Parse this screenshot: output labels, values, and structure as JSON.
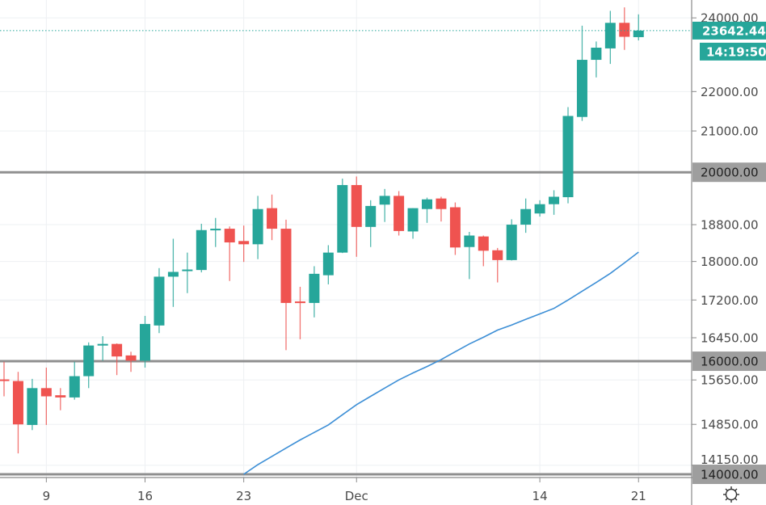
{
  "chart_data": {
    "type": "candlestick",
    "y_scale": "log",
    "ylim": [
      14000,
      24300
    ],
    "grid": true,
    "colors": {
      "up": "#26a69a",
      "down": "#ef5350",
      "ma": "#3d8fd6",
      "level": "#8f8f8f",
      "price_tag": "#26a69a",
      "level_tag": "#9e9e9e"
    },
    "y_ticks": [
      "24000.00",
      "22000.00",
      "21000.00",
      "18800.00",
      "18000.00",
      "17200.00",
      "16450.00",
      "15650.00",
      "14850.00",
      "14150.00"
    ],
    "x_ticks": [
      {
        "label": "9",
        "date": "Nov 9"
      },
      {
        "label": "16",
        "date": "Nov 16"
      },
      {
        "label": "23",
        "date": "Nov 23"
      },
      {
        "label": "Dec",
        "date": "Dec 1"
      },
      {
        "label": "14",
        "date": "Dec 14"
      },
      {
        "label": "21",
        "date": "Dec 21"
      }
    ],
    "horizontal_levels": [
      {
        "value": 20000,
        "label": "20000.00"
      },
      {
        "value": 16000,
        "label": "16000.00"
      },
      {
        "value": 14000,
        "label": "14000.00"
      }
    ],
    "last_price": {
      "value": 23642.44,
      "label": "23642.44",
      "countdown": "14:19:50"
    },
    "candles_columns": [
      "date",
      "open",
      "high",
      "low",
      "close"
    ],
    "candles": [
      [
        "Nov 6",
        15660,
        15990,
        15350,
        15640
      ],
      [
        "Nov 7",
        15630,
        15800,
        14350,
        14850
      ],
      [
        "Nov 8",
        14840,
        15670,
        14750,
        15500
      ],
      [
        "Nov 9",
        15500,
        15880,
        14840,
        15350
      ],
      [
        "Nov 10",
        15370,
        15500,
        15100,
        15330
      ],
      [
        "Nov 11",
        15330,
        15990,
        15290,
        15720
      ],
      [
        "Nov 12",
        15720,
        16360,
        15500,
        16300
      ],
      [
        "Nov 13",
        16300,
        16480,
        16010,
        16330
      ],
      [
        "Nov 14",
        16330,
        16340,
        15740,
        16090
      ],
      [
        "Nov 15",
        16110,
        16180,
        15800,
        16010
      ],
      [
        "Nov 16",
        16010,
        16880,
        15880,
        16720
      ],
      [
        "Nov 17",
        16690,
        17860,
        16540,
        17680
      ],
      [
        "Nov 18",
        17680,
        18490,
        17060,
        17780
      ],
      [
        "Nov 19",
        17800,
        18190,
        17340,
        17830
      ],
      [
        "Nov 20",
        17820,
        18820,
        17770,
        18680
      ],
      [
        "Nov 21",
        18680,
        18950,
        18310,
        18710
      ],
      [
        "Nov 22",
        18710,
        18760,
        17590,
        18410
      ],
      [
        "Nov 23",
        18440,
        18780,
        17990,
        18370
      ],
      [
        "Nov 24",
        18370,
        19450,
        18050,
        19150
      ],
      [
        "Nov 25",
        19170,
        19480,
        18460,
        18710
      ],
      [
        "Nov 26",
        18710,
        18910,
        16210,
        17140
      ],
      [
        "Nov 27",
        17170,
        17470,
        16420,
        17140
      ],
      [
        "Nov 28",
        17140,
        17900,
        16850,
        17740
      ],
      [
        "Nov 29",
        17710,
        18350,
        17520,
        18190
      ],
      [
        "Nov 30",
        18190,
        19850,
        18180,
        19700
      ],
      [
        "Dec 1",
        19700,
        19900,
        18100,
        18750
      ],
      [
        "Dec 2",
        18750,
        19350,
        18310,
        19220
      ],
      [
        "Dec 3",
        19250,
        19610,
        18860,
        19450
      ],
      [
        "Dec 4",
        19450,
        19560,
        18560,
        18660
      ],
      [
        "Dec 5",
        18650,
        19170,
        18490,
        19170
      ],
      [
        "Dec 6",
        19150,
        19410,
        18840,
        19370
      ],
      [
        "Dec 7",
        19390,
        19430,
        18870,
        19150
      ],
      [
        "Dec 8",
        19190,
        19300,
        18140,
        18300
      ],
      [
        "Dec 9",
        18310,
        18640,
        17630,
        18560
      ],
      [
        "Dec 10",
        18540,
        18560,
        17900,
        18230
      ],
      [
        "Dec 11",
        18240,
        18290,
        17560,
        18030
      ],
      [
        "Dec 12",
        18030,
        18920,
        18020,
        18800
      ],
      [
        "Dec 13",
        18800,
        19390,
        18620,
        19150
      ],
      [
        "Dec 14",
        19050,
        19350,
        18980,
        19260
      ],
      [
        "Dec 15",
        19260,
        19580,
        19020,
        19430
      ],
      [
        "Dec 16",
        19420,
        21600,
        19280,
        21375
      ],
      [
        "Dec 17",
        21350,
        23780,
        21250,
        22840
      ],
      [
        "Dec 18",
        22840,
        23340,
        22370,
        23170
      ],
      [
        "Dec 19",
        23150,
        24200,
        22730,
        23860
      ],
      [
        "Dec 20",
        23860,
        24300,
        23110,
        23470
      ],
      [
        "Dec 21",
        23460,
        24100,
        23370,
        23642.44
      ]
    ],
    "moving_average": [
      [
        "Nov 23",
        14000
      ],
      [
        "Nov 24",
        14160
      ],
      [
        "Nov 25",
        14300
      ],
      [
        "Nov 26",
        14440
      ],
      [
        "Nov 27",
        14580
      ],
      [
        "Nov 28",
        14710
      ],
      [
        "Nov 29",
        14840
      ],
      [
        "Nov 30",
        15020
      ],
      [
        "Dec 1",
        15200
      ],
      [
        "Dec 2",
        15350
      ],
      [
        "Dec 3",
        15500
      ],
      [
        "Dec 4",
        15650
      ],
      [
        "Dec 5",
        15780
      ],
      [
        "Dec 6",
        15900
      ],
      [
        "Dec 7",
        16030
      ],
      [
        "Dec 8",
        16180
      ],
      [
        "Dec 9",
        16330
      ],
      [
        "Dec 10",
        16460
      ],
      [
        "Dec 11",
        16600
      ],
      [
        "Dec 12",
        16700
      ],
      [
        "Dec 13",
        16810
      ],
      [
        "Dec 14",
        16920
      ],
      [
        "Dec 15",
        17030
      ],
      [
        "Dec 16",
        17200
      ],
      [
        "Dec 17",
        17380
      ],
      [
        "Dec 18",
        17560
      ],
      [
        "Dec 19",
        17750
      ],
      [
        "Dec 20",
        17970
      ],
      [
        "Dec 21",
        18200
      ]
    ]
  },
  "toolbar": {
    "settings_icon": "gear-icon"
  }
}
